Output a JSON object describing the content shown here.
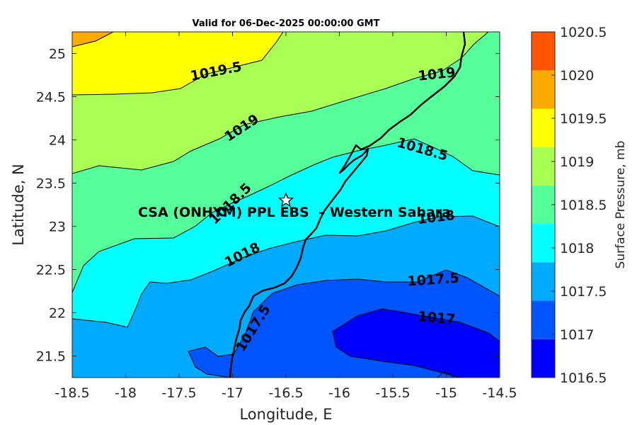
{
  "title": "Valid for 06-Dec-2025 00:00:00 GMT",
  "xlabel": "Longitude, E",
  "ylabel": "Latitude, N",
  "colorbar_label": "Surface Pressure, mb",
  "station_label": "CSA (ONHYM) PPL EBS  – Western Sahara",
  "station_marker": "star",
  "station": {
    "lon": -16.5,
    "lat": 23.3
  },
  "chart_data": {
    "type": "heatmap",
    "subtype": "filled-contour-map",
    "xlim": [
      -18.5,
      -14.5
    ],
    "ylim": [
      21.25,
      25.25
    ],
    "x_ticks": [
      "-18.5",
      "-18",
      "-17.5",
      "-17",
      "-16.5",
      "-16",
      "-15.5",
      "-15",
      "-14.5"
    ],
    "y_ticks": [
      "21.5",
      "22",
      "22.5",
      "23",
      "23.5",
      "24",
      "24.5",
      "25"
    ],
    "colorbar_ticks": [
      "1016.5",
      "1017",
      "1017.5",
      "1018",
      "1018.5",
      "1019",
      "1019.5",
      "1020",
      "1020.5"
    ],
    "levels": [
      1016.5,
      1017,
      1017.5,
      1018,
      1018.5,
      1019,
      1019.5,
      1020,
      1020.5
    ],
    "level_colors": [
      "#0000ff",
      "#0055ff",
      "#00aaff",
      "#00ffff",
      "#55ff99",
      "#aaff55",
      "#ffff00",
      "#ffaa00",
      "#ff5500"
    ],
    "contour_labels": [
      "1019.5",
      "1019",
      "1019",
      "1018.5",
      "1018.5",
      "1018",
      "1018",
      "1017.5",
      "1017.5",
      "1017"
    ],
    "grid": false
  }
}
